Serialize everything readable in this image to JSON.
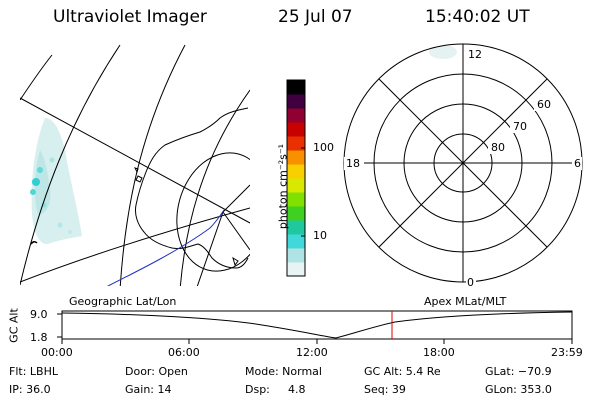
{
  "header": {
    "title": "Ultraviolet Imager",
    "date": "25 Jul 07",
    "time": "15:40:02 UT"
  },
  "colorbar": {
    "unit_label": "photon cm⁻²s⁻¹",
    "ticks": [
      "100",
      "10"
    ],
    "scale": "log",
    "colors": [
      "#e8f4f4",
      "#b0e4e4",
      "#40d8d8",
      "#20c8a0",
      "#40d020",
      "#80e000",
      "#d8e800",
      "#f8d000",
      "#f89000",
      "#e83000",
      "#c80000",
      "#900030",
      "#400040",
      "#000000"
    ]
  },
  "polar_plot": {
    "labels": {
      "mlt_12": "12",
      "mlt_18": "18",
      "mlt_6": "6",
      "mlt_0": "0",
      "lat_60": "60",
      "lat_70": "70",
      "lat_80": "80"
    }
  },
  "map_labels": {
    "left": "Geographic Lat/Lon",
    "right": "Apex MLat/MLT"
  },
  "altitude_plot": {
    "ylabel": "GC Alt",
    "y_ticks": [
      "9.0",
      "1.8"
    ],
    "x_ticks": [
      "00:00",
      "06:00",
      "12:00",
      "18:00",
      "23:59"
    ],
    "current_time_marker": "15:40",
    "marker_color": "#e00000"
  },
  "info": {
    "flt": "Flt: LBHL",
    "door": "Door: Open",
    "mode": "Mode: Normal",
    "gc_alt": "GC Alt: 5.4 Re",
    "glat": "GLat: −70.9",
    "ip": "IP: 36.0",
    "gain": "Gain: 14",
    "dsp_label": "Dsp:",
    "dsp_value": "4.8",
    "seq": "Seq: 39",
    "glon": "GLon: 353.0"
  }
}
